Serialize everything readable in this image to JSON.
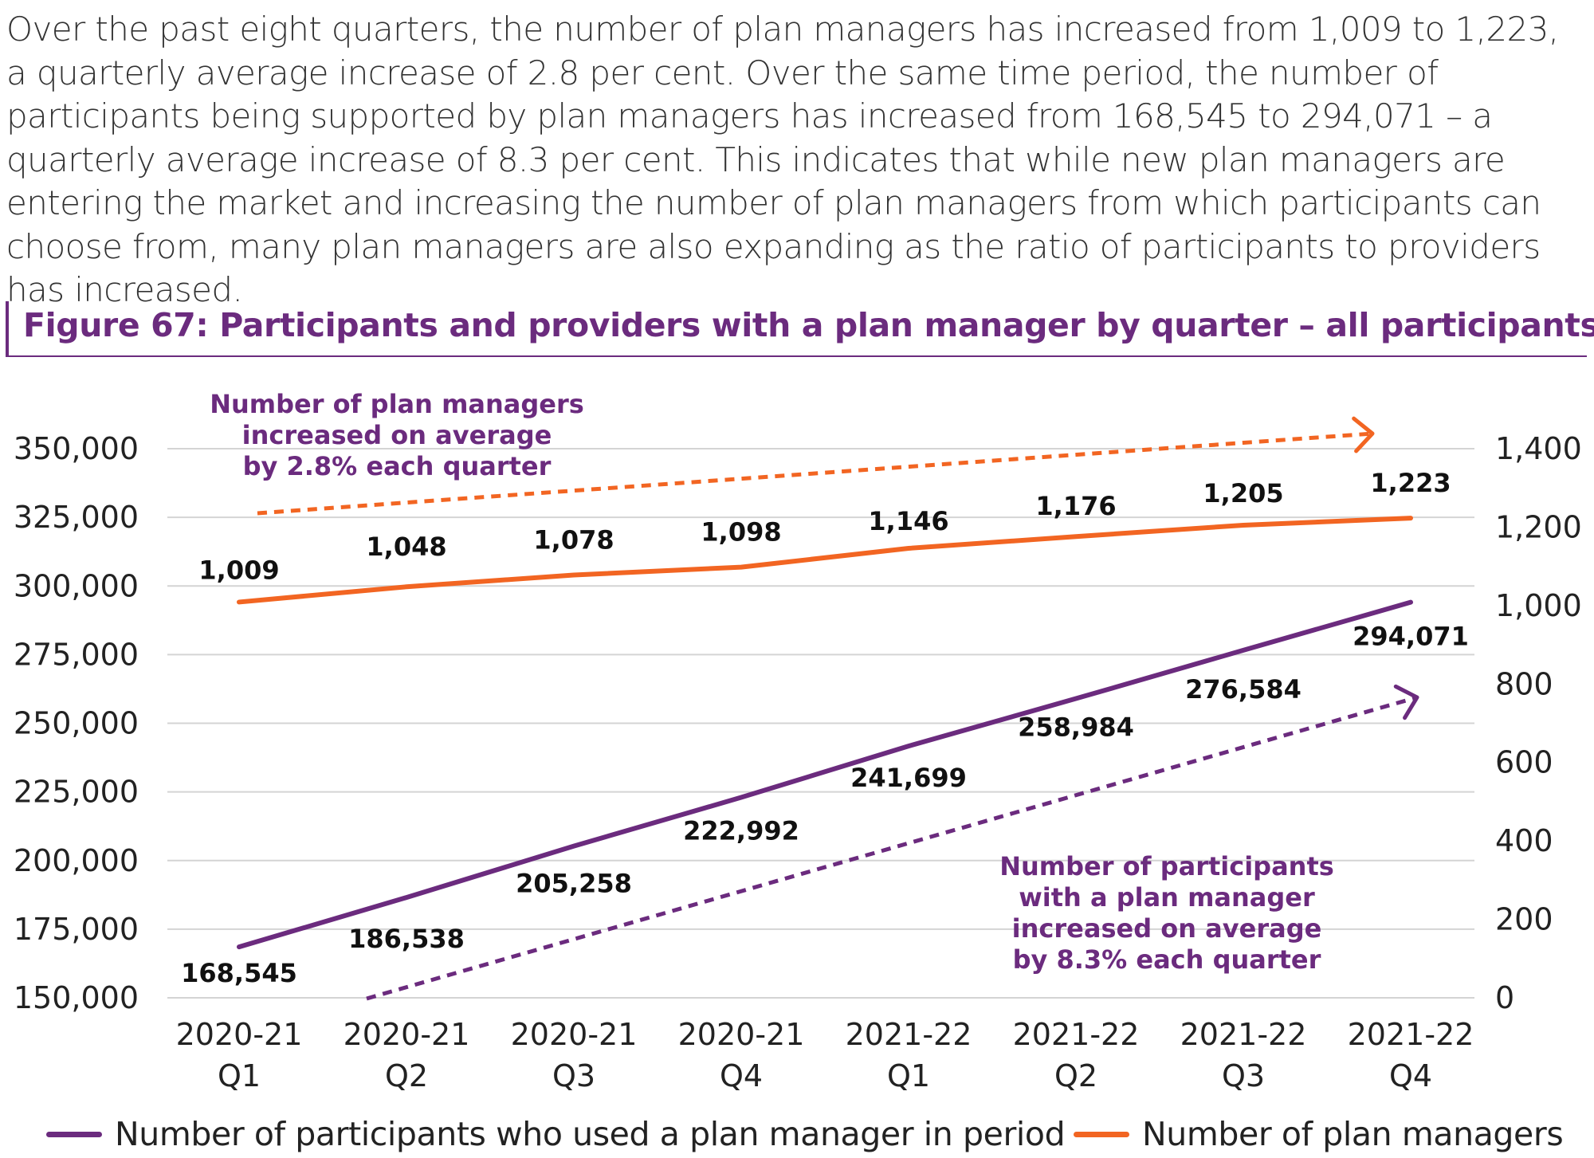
{
  "intro": "Over the past eight quarters, the number of plan managers has increased from 1,009 to 1,223, a quarterly average increase of 2.8 per cent. Over the same time period, the number of participants being supported by plan managers has increased from 168,545 to 294,071 – a quarterly average increase of 8.3 per cent. This indicates that while new plan managers are entering the market and increasing the number of plan managers from which participants can choose from, many plan managers are also expanding as the ratio of participants to providers has increased.",
  "figure_title": "Figure 67: Participants and providers with a plan manager by quarter – all participants",
  "colors": {
    "participants": "#6b2b7e",
    "managers": "#f26522",
    "grid": "#d4d4d4"
  },
  "chart_data": {
    "type": "line",
    "categories": [
      [
        "2020-21",
        "Q1"
      ],
      [
        "2020-21",
        "Q2"
      ],
      [
        "2020-21",
        "Q3"
      ],
      [
        "2020-21",
        "Q4"
      ],
      [
        "2021-22",
        "Q1"
      ],
      [
        "2021-22",
        "Q2"
      ],
      [
        "2021-22",
        "Q3"
      ],
      [
        "2021-22",
        "Q4"
      ]
    ],
    "y_left": {
      "range": [
        150000,
        350000
      ],
      "ticks": [
        "150,000",
        "175,000",
        "200,000",
        "225,000",
        "250,000",
        "275,000",
        "300,000",
        "325,000",
        "350,000"
      ]
    },
    "y_right": {
      "range": [
        0,
        1400
      ],
      "ticks": [
        "0",
        "200",
        "400",
        "600",
        "800",
        "1,000",
        "1,200",
        "1,400"
      ]
    },
    "grid": true,
    "legend_position": "bottom",
    "series": [
      {
        "name": "Number of participants who used a plan manager in period",
        "axis": "left",
        "color": "#6b2b7e",
        "values": [
          168545,
          186538,
          205258,
          222992,
          241699,
          258984,
          276584,
          294071
        ],
        "labels": [
          "168,545",
          "186,538",
          "205,258",
          "222,992",
          "241,699",
          "258,984",
          "276,584",
          "294,071"
        ]
      },
      {
        "name": "Number of plan managers",
        "axis": "right",
        "color": "#f26522",
        "values": [
          1009,
          1048,
          1078,
          1098,
          1146,
          1176,
          1205,
          1223
        ],
        "labels": [
          "1,009",
          "1,048",
          "1,078",
          "1,098",
          "1,146",
          "1,176",
          "1,205",
          "1,223"
        ]
      }
    ],
    "annotations": [
      {
        "lines": [
          "Number of plan managers",
          "increased on average",
          "by 2.8% each quarter"
        ],
        "color": "#6b2b7e"
      },
      {
        "lines": [
          "Number of participants",
          "with a plan manager",
          "increased on average",
          "by 8.3% each quarter"
        ],
        "color": "#6b2b7e"
      }
    ],
    "trend_arrows": [
      {
        "series": "managers",
        "color": "#f26522",
        "style": "dashed"
      },
      {
        "series": "participants",
        "color": "#6b2b7e",
        "style": "dashed"
      }
    ]
  }
}
